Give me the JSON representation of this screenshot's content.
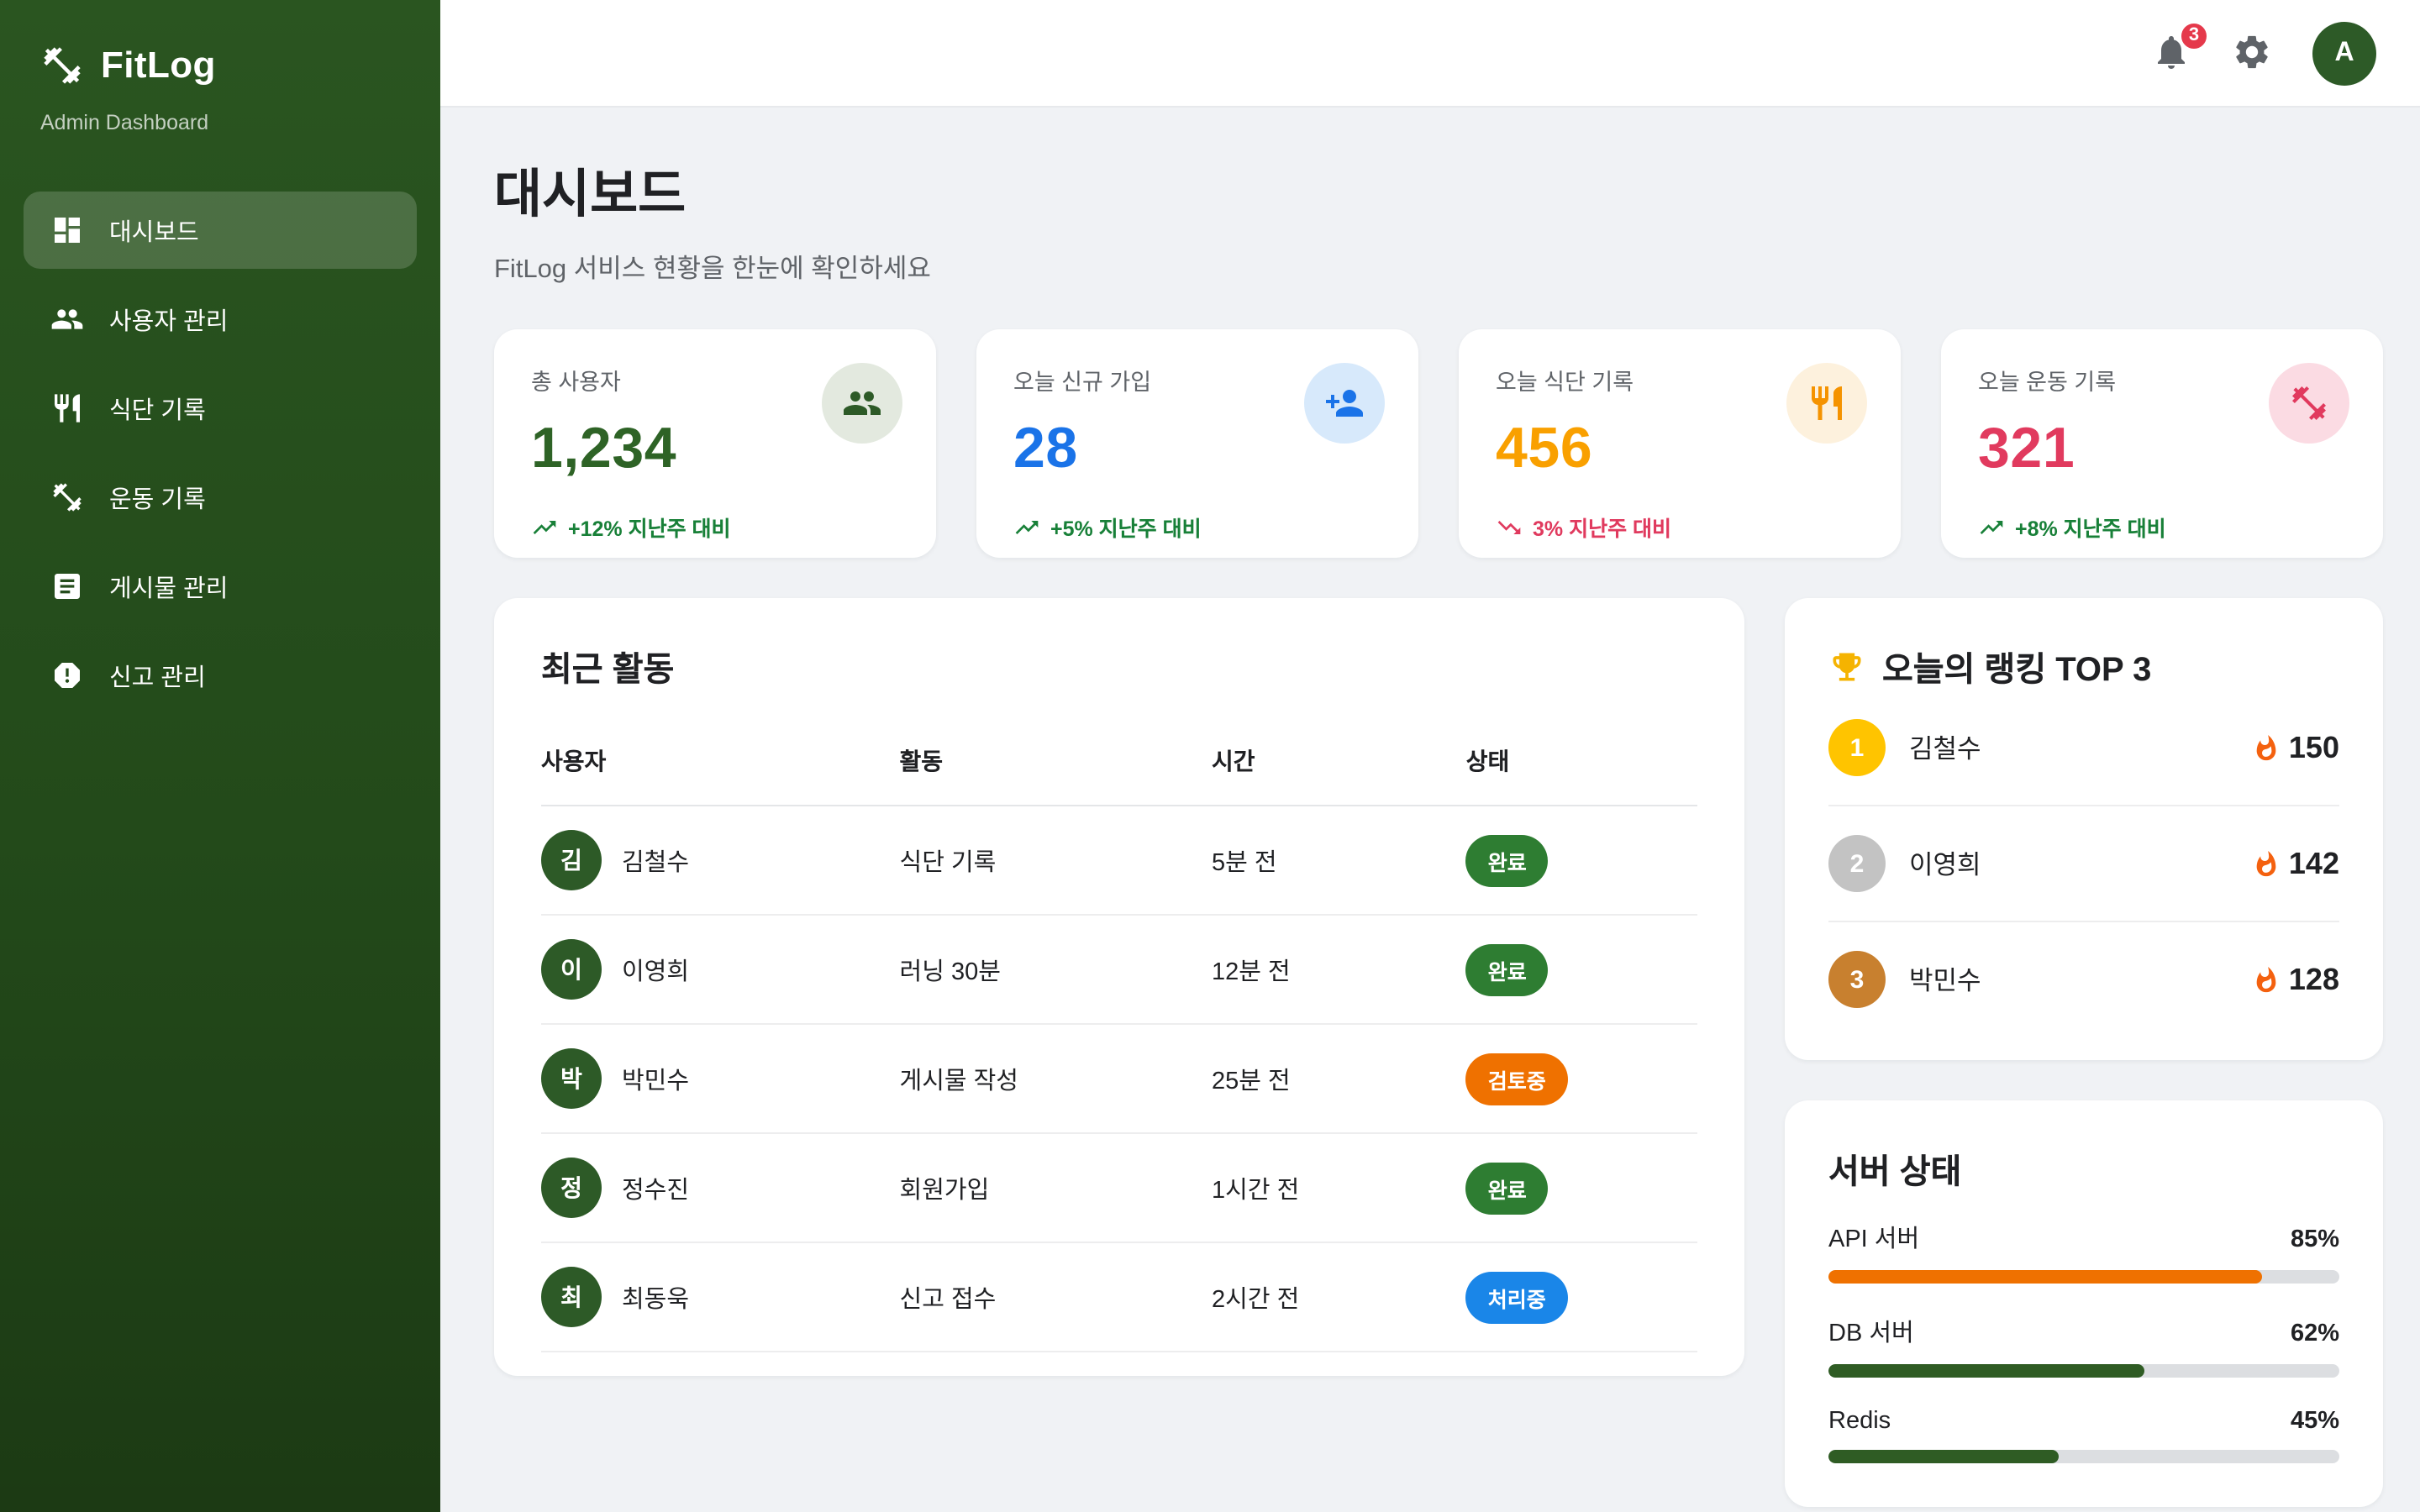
{
  "sidebar": {
    "logo": "FitLog",
    "subtitle": "Admin Dashboard",
    "items": [
      {
        "id": "dashboard",
        "label": "대시보드",
        "icon": "dashboard-icon",
        "active": true
      },
      {
        "id": "users",
        "label": "사용자 관리",
        "icon": "people-icon",
        "active": false
      },
      {
        "id": "meals",
        "label": "식단 기록",
        "icon": "restaurant-icon",
        "active": false
      },
      {
        "id": "workouts",
        "label": "운동 기록",
        "icon": "dumbbell-icon",
        "active": false
      },
      {
        "id": "posts",
        "label": "게시물 관리",
        "icon": "article-icon",
        "active": false
      },
      {
        "id": "reports",
        "label": "신고 관리",
        "icon": "report-icon",
        "active": false
      }
    ]
  },
  "topbar": {
    "notification_count": "3",
    "avatar_initial": "A",
    "avatar_color": "#2d5a27",
    "badge_color": "#e5394b"
  },
  "page": {
    "title": "대시보드",
    "subtitle": "FitLog 서비스 현황을 한눈에 확인하세요"
  },
  "stats": [
    {
      "label": "총 사용자",
      "value": "1,234",
      "value_color": "#2e6326",
      "icon": "people-icon",
      "icon_color": "#2d5a27",
      "bubble_color": "#e3e9df",
      "trend": "+12% 지난주 대비",
      "direction": "up",
      "trend_color": "#188038"
    },
    {
      "label": "오늘 신규 가입",
      "value": "28",
      "value_color": "#1a73e8",
      "icon": "person-add-icon",
      "icon_color": "#1a73e8",
      "bubble_color": "#d7e9fb",
      "trend": "+5% 지난주 대비",
      "direction": "up",
      "trend_color": "#188038"
    },
    {
      "label": "오늘 식단 기록",
      "value": "456",
      "value_color": "#f9a000",
      "icon": "restaurant-icon",
      "icon_color": "#f59300",
      "bubble_color": "#fdf1dd",
      "trend": "3% 지난주 대비",
      "direction": "down",
      "trend_color": "#e03a5e"
    },
    {
      "label": "오늘 운동 기록",
      "value": "321",
      "value_color": "#e13a5e",
      "icon": "dumbbell-icon",
      "icon_color": "#e13a5e",
      "bubble_color": "#fbdbe3",
      "trend": "+8% 지난주 대비",
      "direction": "up",
      "trend_color": "#188038"
    }
  ],
  "activity": {
    "title": "최근 활동",
    "columns": [
      "사용자",
      "활동",
      "시간",
      "상태"
    ],
    "avatar_color": "#2d5a27",
    "rows": [
      {
        "initial": "김",
        "name": "김철수",
        "activity": "식단 기록",
        "time": "5분 전",
        "status": "완료",
        "status_color": "#2e7d32"
      },
      {
        "initial": "이",
        "name": "이영희",
        "activity": "러닝 30분",
        "time": "12분 전",
        "status": "완료",
        "status_color": "#2e7d32"
      },
      {
        "initial": "박",
        "name": "박민수",
        "activity": "게시물 작성",
        "time": "25분 전",
        "status": "검토중",
        "status_color": "#ef7100"
      },
      {
        "initial": "정",
        "name": "정수진",
        "activity": "회원가입",
        "time": "1시간 전",
        "status": "완료",
        "status_color": "#2e7d32"
      },
      {
        "initial": "최",
        "name": "최동욱",
        "activity": "신고 접수",
        "time": "2시간 전",
        "status": "처리중",
        "status_color": "#1a86e8"
      }
    ]
  },
  "ranking": {
    "title": "오늘의 랭킹 TOP 3",
    "trophy_icon": "trophy-icon",
    "trophy_color": "#f5b301",
    "flame_icon": "flame-icon",
    "flame_color": "#f4610f",
    "items": [
      {
        "rank": "1",
        "name": "김철수",
        "score": "150",
        "badge_color": "#ffc400"
      },
      {
        "rank": "2",
        "name": "이영희",
        "score": "142",
        "badge_color": "#c3c3c3"
      },
      {
        "rank": "3",
        "name": "박민수",
        "score": "128",
        "badge_color": "#c8802f"
      }
    ]
  },
  "server": {
    "title": "서버 상태",
    "track_color": "#dcdee1",
    "metrics": [
      {
        "label": "API 서버",
        "value": "85%",
        "pct": 85,
        "color": "#ef7100"
      },
      {
        "label": "DB 서버",
        "value": "62%",
        "pct": 62,
        "color": "#2f5c24"
      },
      {
        "label": "Redis",
        "value": "45%",
        "pct": 45,
        "color": "#2f5c24"
      }
    ]
  }
}
